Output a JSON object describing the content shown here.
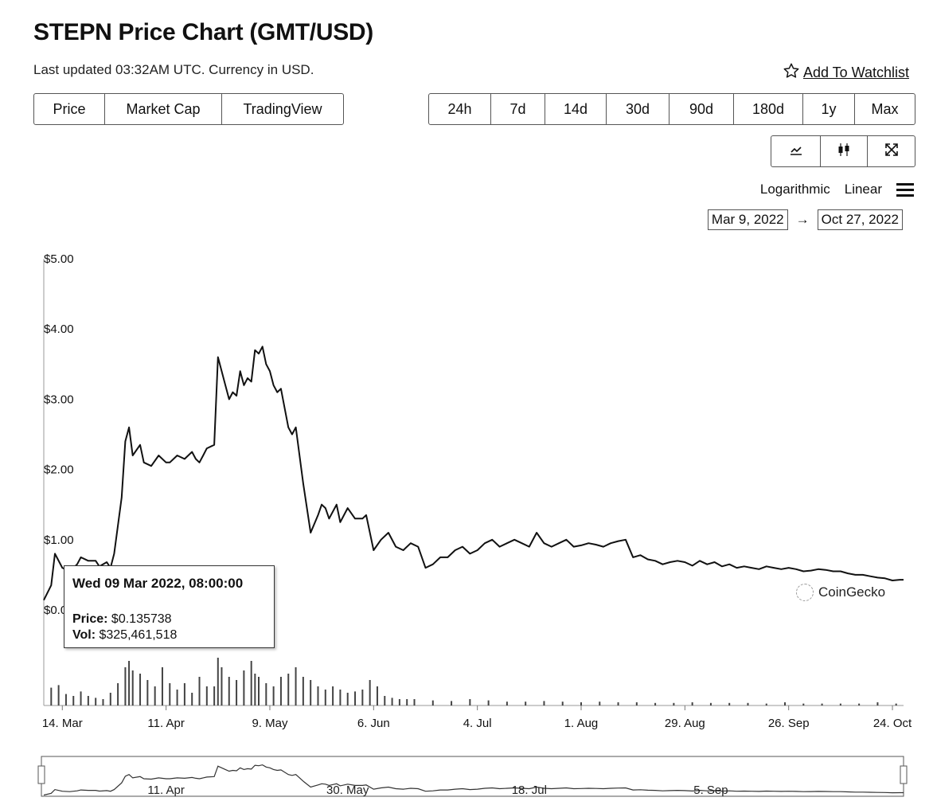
{
  "header": {
    "title": "STEPN Price Chart (GMT/USD)",
    "updated": "Last updated 03:32AM UTC. Currency in USD.",
    "watchlist_label": "Add To Watchlist"
  },
  "tabs": [
    "Price",
    "Market Cap",
    "TradingView"
  ],
  "ranges": [
    "24h",
    "7d",
    "14d",
    "30d",
    "90d",
    "180d",
    "1y",
    "Max"
  ],
  "tools": {
    "icons": [
      "line-chart-icon",
      "candlestick-icon",
      "fullscreen-icon"
    ]
  },
  "scale": {
    "log": "Logarithmic",
    "linear": "Linear"
  },
  "date_range": {
    "from": "Mar 9, 2022",
    "arrow": "→",
    "to": "Oct 27, 2022"
  },
  "tooltip": {
    "date": "Wed 09 Mar 2022, 08:00:00",
    "price_label": "Price:",
    "price_value": "$0.135738",
    "vol_label": "Vol:",
    "vol_value": "$325,461,518"
  },
  "brand": "CoinGecko",
  "chart_data": {
    "type": "line",
    "title": "STEPN Price Chart (GMT/USD)",
    "ylim": [
      0,
      5
    ],
    "y_ticks": [
      "$5.00",
      "$4.00",
      "$3.00",
      "$2.00",
      "$1.00",
      "$0.00"
    ],
    "y_tick_values": [
      5,
      4,
      3,
      2,
      1,
      0
    ],
    "x_ticks": [
      "14. Mar",
      "11. Apr",
      "9. May",
      "6. Jun",
      "4. Jul",
      "1. Aug",
      "29. Aug",
      "26. Sep",
      "24. Oct"
    ],
    "x_tick_days": [
      5,
      33,
      61,
      89,
      117,
      145,
      173,
      201,
      229
    ],
    "navigator_ticks": [
      "11. Apr",
      "30. May",
      "18. Jul",
      "5. Sep"
    ],
    "navigator_tick_days": [
      33,
      82,
      131,
      180
    ],
    "series": [
      {
        "days": [
          0,
          2,
          3,
          5,
          7,
          9,
          10,
          12,
          14,
          15,
          17,
          18,
          19,
          21,
          22,
          23,
          24,
          26,
          27,
          29,
          31,
          33,
          34,
          36,
          38,
          40,
          41,
          42,
          43,
          44,
          46,
          47,
          49,
          50,
          51,
          52,
          53,
          54,
          55,
          56,
          57,
          58,
          59,
          60,
          61,
          62,
          63,
          64,
          66,
          67,
          68,
          70,
          72,
          74,
          75,
          76,
          77,
          79,
          80,
          82,
          84,
          86,
          87,
          89,
          91,
          93,
          95,
          97,
          99,
          101,
          103,
          105,
          107,
          109,
          111,
          113,
          115,
          117,
          119,
          121,
          123,
          125,
          127,
          129,
          131,
          133,
          135,
          137,
          139,
          141,
          143,
          145,
          147,
          149,
          151,
          153,
          155,
          157,
          159,
          161,
          163,
          165,
          167,
          169,
          171,
          173,
          175,
          177,
          179,
          181,
          183,
          185,
          187,
          189,
          191,
          193,
          195,
          197,
          199,
          201,
          203,
          205,
          207,
          209,
          211,
          213,
          215,
          217,
          219,
          221,
          223,
          225,
          227,
          229,
          231,
          232
        ],
        "values": [
          0.14,
          0.35,
          0.8,
          0.6,
          0.55,
          0.65,
          0.75,
          0.7,
          0.7,
          0.62,
          0.68,
          0.6,
          0.8,
          1.6,
          2.4,
          2.6,
          2.2,
          2.35,
          2.1,
          2.05,
          2.2,
          2.1,
          2.1,
          2.2,
          2.15,
          2.25,
          2.15,
          2.1,
          2.2,
          2.3,
          2.35,
          3.6,
          3.2,
          3.0,
          3.1,
          3.05,
          3.4,
          3.2,
          3.3,
          3.25,
          3.7,
          3.65,
          3.75,
          3.5,
          3.4,
          3.2,
          3.1,
          3.15,
          2.6,
          2.5,
          2.6,
          1.8,
          1.1,
          1.35,
          1.5,
          1.45,
          1.3,
          1.5,
          1.25,
          1.45,
          1.3,
          1.3,
          1.35,
          0.85,
          1.0,
          1.1,
          0.9,
          0.85,
          0.95,
          0.9,
          0.6,
          0.65,
          0.75,
          0.75,
          0.85,
          0.9,
          0.8,
          0.85,
          0.95,
          1.0,
          0.9,
          0.95,
          1.0,
          0.95,
          0.9,
          1.1,
          0.95,
          0.9,
          0.95,
          1.0,
          0.9,
          0.92,
          0.95,
          0.93,
          0.9,
          0.95,
          0.98,
          1.0,
          0.75,
          0.78,
          0.72,
          0.7,
          0.65,
          0.68,
          0.7,
          0.68,
          0.63,
          0.7,
          0.65,
          0.68,
          0.62,
          0.65,
          0.6,
          0.62,
          0.6,
          0.58,
          0.62,
          0.6,
          0.58,
          0.6,
          0.58,
          0.55,
          0.56,
          0.58,
          0.57,
          0.55,
          0.55,
          0.52,
          0.5,
          0.5,
          0.48,
          0.46,
          0.45,
          0.42,
          0.43,
          0.43
        ]
      }
    ],
    "volume": {
      "days": [
        2,
        4,
        6,
        8,
        10,
        12,
        14,
        16,
        18,
        20,
        22,
        23,
        24,
        26,
        28,
        30,
        32,
        34,
        36,
        38,
        40,
        42,
        44,
        46,
        47,
        48,
        50,
        52,
        54,
        56,
        57,
        58,
        60,
        62,
        64,
        66,
        68,
        70,
        72,
        74,
        76,
        78,
        80,
        82,
        84,
        86,
        88,
        90,
        92,
        94,
        96,
        98,
        100,
        105,
        110,
        115,
        120,
        125,
        130,
        135,
        140,
        145,
        150,
        155,
        160,
        165,
        170,
        175,
        180,
        185,
        190,
        195,
        200,
        205,
        210,
        215,
        220,
        225,
        230
      ],
      "values": [
        0.28,
        0.32,
        0.18,
        0.15,
        0.22,
        0.15,
        0.12,
        0.1,
        0.2,
        0.35,
        0.6,
        0.7,
        0.55,
        0.5,
        0.4,
        0.3,
        0.6,
        0.35,
        0.25,
        0.35,
        0.2,
        0.45,
        0.3,
        0.3,
        0.75,
        0.6,
        0.45,
        0.4,
        0.55,
        0.7,
        0.5,
        0.45,
        0.35,
        0.3,
        0.45,
        0.5,
        0.6,
        0.45,
        0.4,
        0.3,
        0.25,
        0.3,
        0.25,
        0.2,
        0.22,
        0.25,
        0.4,
        0.3,
        0.15,
        0.12,
        0.1,
        0.1,
        0.1,
        0.08,
        0.07,
        0.1,
        0.08,
        0.06,
        0.06,
        0.07,
        0.06,
        0.05,
        0.06,
        0.05,
        0.05,
        0.04,
        0.04,
        0.05,
        0.04,
        0.04,
        0.04,
        0.03,
        0.05,
        0.03,
        0.03,
        0.03,
        0.03,
        0.05,
        0.03
      ]
    }
  }
}
